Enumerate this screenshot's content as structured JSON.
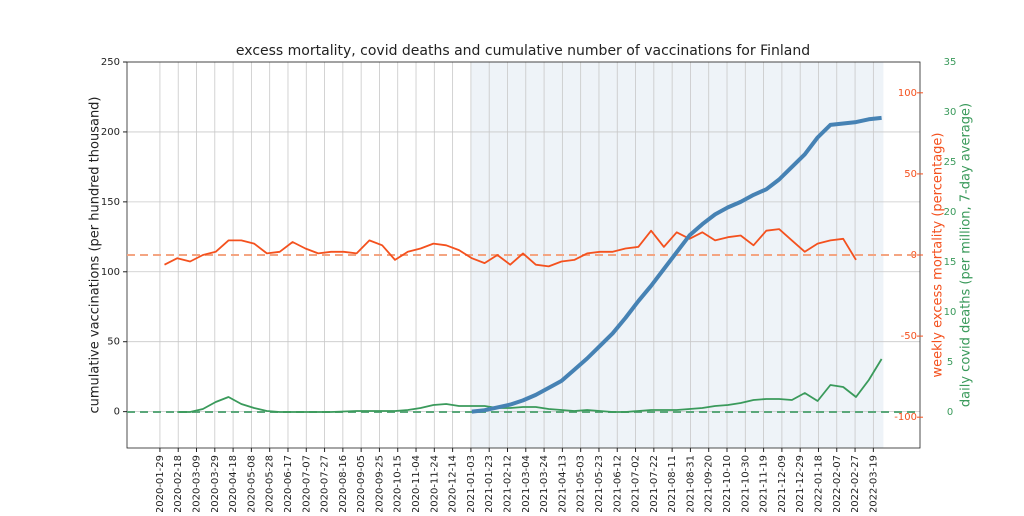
{
  "chart_data": {
    "type": "line",
    "title": "excess mortality, covid deaths and cumulative number of vaccinations for Finland",
    "ylabel": "cumulative vaccinations (per hundred thousand)",
    "y2label": "weekly excess mortality (percentage)",
    "y3label": "daily covid deaths (per million, 7-day average)",
    "xlim": [
      "2019-12-24",
      "2022-05-09"
    ],
    "xticks": [
      "2020-01-29",
      "2020-02-18",
      "2020-03-09",
      "2020-03-29",
      "2020-04-18",
      "2020-05-08",
      "2020-05-28",
      "2020-06-17",
      "2020-07-07",
      "2020-07-27",
      "2020-08-16",
      "2020-09-05",
      "2020-09-25",
      "2020-10-15",
      "2020-11-04",
      "2020-11-24",
      "2020-12-14",
      "2021-01-03",
      "2021-01-23",
      "2021-02-12",
      "2021-03-04",
      "2021-03-24",
      "2021-04-13",
      "2021-05-03",
      "2021-05-23",
      "2021-06-12",
      "2021-07-02",
      "2021-07-22",
      "2021-08-11",
      "2021-08-31",
      "2021-09-20",
      "2021-10-10",
      "2021-10-30",
      "2021-11-19",
      "2021-12-09",
      "2021-12-29",
      "2022-01-18",
      "2022-02-07",
      "2022-02-27",
      "2022-03-19"
    ],
    "ylim": [
      -26,
      250
    ],
    "yticks": [
      0,
      50,
      100,
      150,
      200,
      250
    ],
    "y2lim": [
      -119,
      119
    ],
    "y2ticks": [
      -100,
      -50,
      0,
      50,
      100
    ],
    "y2color": "#f4511e",
    "y3lim": [
      -3.6,
      35
    ],
    "y3ticks": [
      0,
      5,
      10,
      15,
      20,
      25,
      30,
      35
    ],
    "y3color": "#3a9a5b",
    "grid": true,
    "shaded_span": {
      "x": [
        "2021-01-03",
        "2022-03-30"
      ],
      "color": "#eef3f8"
    },
    "reference_lines": [
      {
        "axis": "y2",
        "value": 0,
        "color": "#f4a582"
      },
      {
        "axis": "y3",
        "value": 0,
        "color": "#5aa77a"
      }
    ],
    "series": [
      {
        "axis": "y2",
        "color": "#f4511e",
        "width": 1.8,
        "x": [
          "2020-02-03",
          "2020-02-17",
          "2020-03-02",
          "2020-03-16",
          "2020-03-30",
          "2020-04-13",
          "2020-04-27",
          "2020-05-11",
          "2020-05-25",
          "2020-06-08",
          "2020-06-22",
          "2020-07-06",
          "2020-07-20",
          "2020-08-03",
          "2020-08-17",
          "2020-08-31",
          "2020-09-14",
          "2020-09-28",
          "2020-10-12",
          "2020-10-26",
          "2020-11-09",
          "2020-11-23",
          "2020-12-07",
          "2020-12-21",
          "2021-01-04",
          "2021-01-18",
          "2021-02-01",
          "2021-02-15",
          "2021-03-01",
          "2021-03-15",
          "2021-03-29",
          "2021-04-12",
          "2021-04-26",
          "2021-05-10",
          "2021-05-24",
          "2021-06-07",
          "2021-06-21",
          "2021-07-05",
          "2021-07-19",
          "2021-08-02",
          "2021-08-16",
          "2021-08-30",
          "2021-09-13",
          "2021-09-27",
          "2021-10-11",
          "2021-10-25",
          "2021-11-08",
          "2021-11-22",
          "2021-12-06",
          "2021-12-20",
          "2022-01-03",
          "2022-01-17",
          "2022-01-31",
          "2022-02-14",
          "2022-02-28"
        ],
        "values": [
          -6,
          -2,
          -4,
          0,
          2,
          9,
          9,
          7,
          1,
          2,
          8,
          4,
          1,
          2,
          2,
          1,
          9,
          6,
          -3,
          2,
          4,
          7,
          6,
          3,
          -2,
          -5,
          0,
          -6,
          1,
          -6,
          -7,
          -4,
          -3,
          1,
          2,
          2,
          4,
          5,
          15,
          5,
          14,
          10,
          14,
          9,
          11,
          12,
          6,
          15,
          16,
          9,
          2,
          7,
          9,
          10,
          -3
        ]
      },
      {
        "axis": "y3",
        "color": "#3a9a5b",
        "width": 1.8,
        "x": [
          "2020-02-17",
          "2020-03-02",
          "2020-03-16",
          "2020-03-30",
          "2020-04-13",
          "2020-04-27",
          "2020-05-11",
          "2020-05-25",
          "2020-06-08",
          "2020-06-22",
          "2020-07-06",
          "2020-07-20",
          "2020-08-03",
          "2020-08-17",
          "2020-08-31",
          "2020-09-14",
          "2020-09-28",
          "2020-10-12",
          "2020-10-26",
          "2020-11-09",
          "2020-11-23",
          "2020-12-07",
          "2020-12-21",
          "2021-01-04",
          "2021-01-18",
          "2021-02-01",
          "2021-02-15",
          "2021-03-01",
          "2021-03-15",
          "2021-03-29",
          "2021-04-12",
          "2021-04-26",
          "2021-05-10",
          "2021-05-24",
          "2021-06-07",
          "2021-06-21",
          "2021-07-05",
          "2021-07-19",
          "2021-08-02",
          "2021-08-16",
          "2021-08-30",
          "2021-09-13",
          "2021-09-27",
          "2021-10-11",
          "2021-10-25",
          "2021-11-08",
          "2021-11-22",
          "2021-12-06",
          "2021-12-20",
          "2022-01-03",
          "2022-01-17",
          "2022-01-31",
          "2022-02-14",
          "2022-02-28",
          "2022-03-14",
          "2022-03-28"
        ],
        "values": [
          0,
          0,
          0.3,
          1.0,
          1.5,
          0.8,
          0.4,
          0.1,
          0,
          0,
          0,
          0,
          0,
          0.05,
          0.1,
          0.1,
          0.1,
          0.1,
          0.2,
          0.4,
          0.7,
          0.8,
          0.6,
          0.6,
          0.6,
          0.4,
          0.4,
          0.5,
          0.5,
          0.3,
          0.2,
          0.1,
          0.2,
          0.1,
          0,
          0,
          0.1,
          0.2,
          0.2,
          0.2,
          0.3,
          0.4,
          0.6,
          0.7,
          0.9,
          1.2,
          1.3,
          1.3,
          1.2,
          1.9,
          1.1,
          2.7,
          2.5,
          1.5,
          3.2,
          5.3
        ]
      },
      {
        "axis": "y",
        "color": "#4682b4",
        "width": 4,
        "x": [
          "2021-01-04",
          "2021-01-18",
          "2021-02-01",
          "2021-02-15",
          "2021-03-01",
          "2021-03-15",
          "2021-03-29",
          "2021-04-12",
          "2021-04-26",
          "2021-05-10",
          "2021-05-24",
          "2021-06-07",
          "2021-06-21",
          "2021-07-05",
          "2021-07-19",
          "2021-08-02",
          "2021-08-16",
          "2021-08-30",
          "2021-09-13",
          "2021-09-27",
          "2021-10-11",
          "2021-10-25",
          "2021-11-08",
          "2021-11-22",
          "2021-12-06",
          "2021-12-20",
          "2022-01-03",
          "2022-01-17",
          "2022-01-31",
          "2022-02-14",
          "2022-02-28",
          "2022-03-14",
          "2022-03-28"
        ],
        "values": [
          0,
          1,
          3,
          5,
          8,
          12,
          17,
          22,
          30,
          38,
          47,
          56,
          67,
          79,
          90,
          102,
          114,
          126,
          134,
          141,
          146,
          150,
          155,
          159,
          166,
          175,
          184,
          196,
          205,
          206,
          207,
          209,
          210
        ]
      }
    ]
  }
}
